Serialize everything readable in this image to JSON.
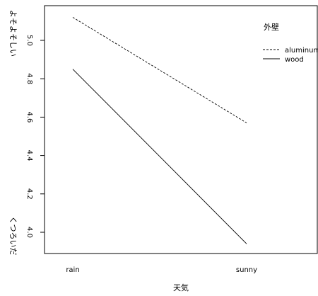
{
  "chart_data": {
    "type": "line",
    "title": "",
    "xlabel": "天気",
    "ylabel_top": "よそよそしい",
    "ylabel_bottom": "くつろいだ",
    "categories": [
      "rain",
      "sunny"
    ],
    "legend_title": "外壁",
    "legend_position": "top-right",
    "ylim": [
      3.94,
      5.13
    ],
    "yticks": [
      "4.0",
      "4.2",
      "4.4",
      "4.6",
      "4.8",
      "5.0"
    ],
    "grid": false,
    "series": [
      {
        "name": "aluminum",
        "values": [
          5.12,
          4.57
        ],
        "style": "dashed",
        "color": "#000000"
      },
      {
        "name": "wood",
        "values": [
          4.85,
          3.94
        ],
        "style": "solid",
        "color": "#000000"
      }
    ]
  }
}
